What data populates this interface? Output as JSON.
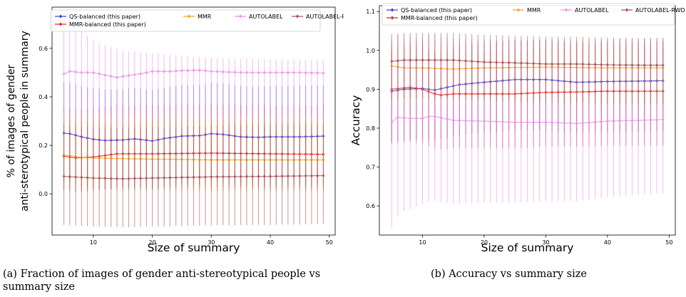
{
  "chart_data": [
    {
      "type": "line",
      "caption": "(a) Fraction of images of gender anti-stereotypical people vs summary size",
      "title": "",
      "xlabel": "Size of summary",
      "ylabel_lines": [
        "% of images of gender",
        "anti-sterotypical people in summary"
      ],
      "xlim": [
        3,
        51
      ],
      "ylim": [
        -0.17,
        0.77
      ],
      "xticks": [
        10,
        20,
        30,
        40,
        50
      ],
      "yticks": [
        0.0,
        0.2,
        0.4,
        0.6
      ],
      "ytick_labels": [
        "0.0",
        "0.2",
        "0.4",
        "0.6"
      ],
      "grid": false,
      "legend": "upper-center",
      "x_start": 5,
      "x_end": 49,
      "series": [
        {
          "name": "QS-balanced (this paper)",
          "color": "#3838d8",
          "marker": "diamond",
          "values_keypoints": [
            [
              5,
              0.25
            ],
            [
              6,
              0.248
            ],
            [
              8,
              0.235
            ],
            [
              10,
              0.225
            ],
            [
              12,
              0.22
            ],
            [
              15,
              0.222
            ],
            [
              17,
              0.227
            ],
            [
              20,
              0.218
            ],
            [
              22,
              0.228
            ],
            [
              25,
              0.238
            ],
            [
              28,
              0.24
            ],
            [
              30,
              0.248
            ],
            [
              32,
              0.245
            ],
            [
              35,
              0.235
            ],
            [
              38,
              0.233
            ],
            [
              40,
              0.235
            ],
            [
              45,
              0.235
            ],
            [
              49,
              0.238
            ]
          ],
          "err_lower": 0.2,
          "err_upper": 0.21
        },
        {
          "name": "MMR-balanced (this paper)",
          "color": "#e02020",
          "marker": "diamond",
          "values_keypoints": [
            [
              5,
              0.155
            ],
            [
              7,
              0.148
            ],
            [
              10,
              0.152
            ],
            [
              12,
              0.158
            ],
            [
              14,
              0.165
            ],
            [
              20,
              0.165
            ],
            [
              30,
              0.168
            ],
            [
              40,
              0.165
            ],
            [
              49,
              0.163
            ]
          ],
          "err_lower": 0.14,
          "err_upper": 0.2
        },
        {
          "name": "MMR",
          "color": "#f5a020",
          "marker": "diamond",
          "values_keypoints": [
            [
              5,
              0.16
            ],
            [
              8,
              0.15
            ],
            [
              10,
              0.148
            ],
            [
              15,
              0.145
            ],
            [
              20,
              0.143
            ],
            [
              25,
              0.142
            ],
            [
              30,
              0.14
            ],
            [
              40,
              0.14
            ],
            [
              49,
              0.14
            ]
          ],
          "err_lower": 0.13,
          "err_upper": 0.18
        },
        {
          "name": "AUTOLABEL",
          "color": "#e890e8",
          "marker": "diamond",
          "values_keypoints": [
            [
              5,
              0.495
            ],
            [
              6,
              0.505
            ],
            [
              8,
              0.5
            ],
            [
              10,
              0.5
            ],
            [
              12,
              0.49
            ],
            [
              14,
              0.48
            ],
            [
              16,
              0.488
            ],
            [
              18,
              0.495
            ],
            [
              20,
              0.505
            ],
            [
              23,
              0.505
            ],
            [
              25,
              0.508
            ],
            [
              28,
              0.51
            ],
            [
              30,
              0.505
            ],
            [
              33,
              0.502
            ],
            [
              36,
              0.5
            ],
            [
              40,
              0.5
            ],
            [
              45,
              0.5
            ],
            [
              49,
              0.498
            ]
          ],
          "err_lower": 0.2,
          "err_upper_keypoints": [
            [
              5,
              0.69
            ],
            [
              7,
              0.7
            ],
            [
              10,
              0.63
            ],
            [
              15,
              0.59
            ],
            [
              20,
              0.58
            ],
            [
              30,
              0.56
            ],
            [
              49,
              0.55
            ]
          ]
        },
        {
          "name": "AUTOLABEL-RWD",
          "color": "#a85050",
          "marker": "diamond",
          "values_keypoints": [
            [
              5,
              0.072
            ],
            [
              10,
              0.065
            ],
            [
              15,
              0.062
            ],
            [
              20,
              0.065
            ],
            [
              30,
              0.07
            ],
            [
              40,
              0.072
            ],
            [
              49,
              0.075
            ]
          ],
          "err_lower": 0.2,
          "err_upper": 0.21
        }
      ]
    },
    {
      "type": "line",
      "caption": "(b) Accuracy vs summary size",
      "title": "",
      "xlabel": "Size of summary",
      "ylabel_lines": [
        "Accuracy"
      ],
      "xlim": [
        3,
        51
      ],
      "ylim": [
        0.525,
        1.115
      ],
      "xticks": [
        10,
        20,
        30,
        40,
        50
      ],
      "yticks": [
        0.6,
        0.7,
        0.8,
        0.9,
        1.0,
        1.1
      ],
      "ytick_labels": [
        "0.6",
        "0.7",
        "0.8",
        "0.9",
        "1.0",
        "1.1"
      ],
      "grid": false,
      "legend": "upper-center",
      "x_start": 5,
      "x_end": 49,
      "series": [
        {
          "name": "QS-balanced (this paper)",
          "color": "#3838d8",
          "marker": "diamond",
          "values_keypoints": [
            [
              5,
              0.895
            ],
            [
              7,
              0.9
            ],
            [
              10,
              0.902
            ],
            [
              12,
              0.898
            ],
            [
              14,
              0.905
            ],
            [
              16,
              0.912
            ],
            [
              20,
              0.918
            ],
            [
              25,
              0.925
            ],
            [
              30,
              0.925
            ],
            [
              35,
              0.918
            ],
            [
              40,
              0.92
            ],
            [
              45,
              0.921
            ],
            [
              49,
              0.922
            ]
          ],
          "err_lower": 0.13,
          "err_upper": 0.1
        },
        {
          "name": "MMR-balanced (this paper)",
          "color": "#e02020",
          "marker": "diamond",
          "values_keypoints": [
            [
              5,
              0.9
            ],
            [
              8,
              0.905
            ],
            [
              10,
              0.9
            ],
            [
              12,
              0.888
            ],
            [
              13,
              0.885
            ],
            [
              15,
              0.888
            ],
            [
              20,
              0.888
            ],
            [
              25,
              0.888
            ],
            [
              30,
              0.892
            ],
            [
              35,
              0.893
            ],
            [
              40,
              0.895
            ],
            [
              45,
              0.895
            ],
            [
              49,
              0.895
            ]
          ],
          "err_lower": 0.14,
          "err_upper": 0.11
        },
        {
          "name": "MMR",
          "color": "#f5a020",
          "marker": "diamond",
          "values_keypoints": [
            [
              5,
              0.96
            ],
            [
              7,
              0.955
            ],
            [
              10,
              0.955
            ],
            [
              15,
              0.952
            ],
            [
              20,
              0.955
            ],
            [
              30,
              0.957
            ],
            [
              40,
              0.955
            ],
            [
              49,
              0.955
            ]
          ],
          "err_lower": 0.09,
          "err_upper": 0.07
        },
        {
          "name": "AUTOLABEL",
          "color": "#e890e8",
          "marker": "diamond",
          "values_keypoints": [
            [
              5,
              0.815
            ],
            [
              6,
              0.828
            ],
            [
              8,
              0.825
            ],
            [
              10,
              0.825
            ],
            [
              11,
              0.83
            ],
            [
              12,
              0.83
            ],
            [
              15,
              0.82
            ],
            [
              20,
              0.818
            ],
            [
              25,
              0.815
            ],
            [
              30,
              0.815
            ],
            [
              35,
              0.812
            ],
            [
              40,
              0.818
            ],
            [
              45,
              0.82
            ],
            [
              49,
              0.822
            ]
          ],
          "err_lower_keypoints": [
            [
              5,
              0.27
            ],
            [
              7,
              0.24
            ],
            [
              10,
              0.22
            ],
            [
              20,
              0.21
            ],
            [
              49,
              0.19
            ]
          ],
          "err_upper": 0.21
        },
        {
          "name": "AUTOLABEL-RWD",
          "color": "#a85050",
          "marker": "diamond",
          "values_keypoints": [
            [
              5,
              0.972
            ],
            [
              7,
              0.975
            ],
            [
              10,
              0.975
            ],
            [
              15,
              0.975
            ],
            [
              20,
              0.97
            ],
            [
              25,
              0.968
            ],
            [
              30,
              0.965
            ],
            [
              35,
              0.965
            ],
            [
              40,
              0.963
            ],
            [
              45,
              0.962
            ],
            [
              49,
              0.962
            ]
          ],
          "err_lower": 0.1,
          "err_upper": 0.07
        }
      ]
    }
  ]
}
